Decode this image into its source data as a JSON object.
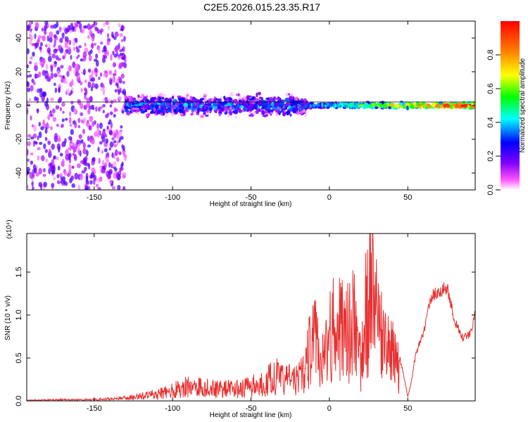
{
  "title": "C2E5.2026.015.23.35.R17",
  "chart_data": [
    {
      "type": "heatmap",
      "xlabel": "Height of straight line (km)",
      "ylabel": "Frequency (Hz)",
      "xlim": [
        -193,
        93
      ],
      "ylim": [
        -50,
        50
      ],
      "xticks": [
        -150,
        -100,
        -50,
        0,
        50
      ],
      "yticks": [
        -40,
        -20,
        0,
        20,
        40
      ],
      "colorbar": {
        "label": "Normalized spectral amplitude",
        "range": [
          0.0,
          1.0
        ],
        "ticks": [
          0.0,
          0.2,
          0.4,
          0.6,
          0.8
        ],
        "colors": [
          "#ffffff",
          "#ff55ff",
          "#8000ff",
          "#0000ff",
          "#00ffff",
          "#00ff00",
          "#ffff00",
          "#ff8000",
          "#ff0000"
        ]
      },
      "description_points": [
        {
          "x_range": [
            -193,
            -130
          ],
          "freq_spread": 50,
          "amplitude": 0.1
        },
        {
          "x_range": [
            -130,
            -15
          ],
          "freq_spread": 8,
          "amplitude": 0.3
        },
        {
          "x_range": [
            -15,
            93
          ],
          "freq_spread": 2,
          "amplitude": 0.85
        }
      ]
    },
    {
      "type": "line",
      "xlabel": "Height of straight line (km)",
      "ylabel": "SNR (10 * v/v)",
      "yscale_label": "(x10⁴)",
      "xlim": [
        -193,
        93
      ],
      "ylim": [
        0,
        1.95
      ],
      "xticks": [
        -150,
        -100,
        -50,
        0,
        50
      ],
      "yticks": [
        0.0,
        0.5,
        1.0,
        1.5
      ],
      "yticklabels": [
        "0.0",
        "0.5",
        "1.0",
        "1.5"
      ],
      "color": "#e83030",
      "series": [
        {
          "x": [
            -193,
            -170,
            -150,
            -130,
            -120,
            -110,
            -100,
            -90,
            -80,
            -70,
            -60,
            -50,
            -45,
            -40,
            -35,
            -30,
            -25,
            -20,
            -15,
            -10,
            -5,
            0,
            5,
            10,
            15,
            20,
            25,
            30,
            35,
            40,
            45,
            48,
            50,
            52,
            55,
            60,
            65,
            70,
            75,
            80,
            85,
            90,
            93
          ],
          "y": [
            0.01,
            0.02,
            0.02,
            0.05,
            0.08,
            0.12,
            0.18,
            0.25,
            0.24,
            0.22,
            0.2,
            0.25,
            0.28,
            0.32,
            0.45,
            0.35,
            0.4,
            0.35,
            0.6,
            1.2,
            0.6,
            1.1,
            1.5,
            1.0,
            1.6,
            0.6,
            1.9,
            1.4,
            0.9,
            0.8,
            0.5,
            0.25,
            0.05,
            0.2,
            0.55,
            0.8,
            1.25,
            1.3,
            1.35,
            0.95,
            0.75,
            0.8,
            1.05
          ]
        }
      ]
    }
  ]
}
